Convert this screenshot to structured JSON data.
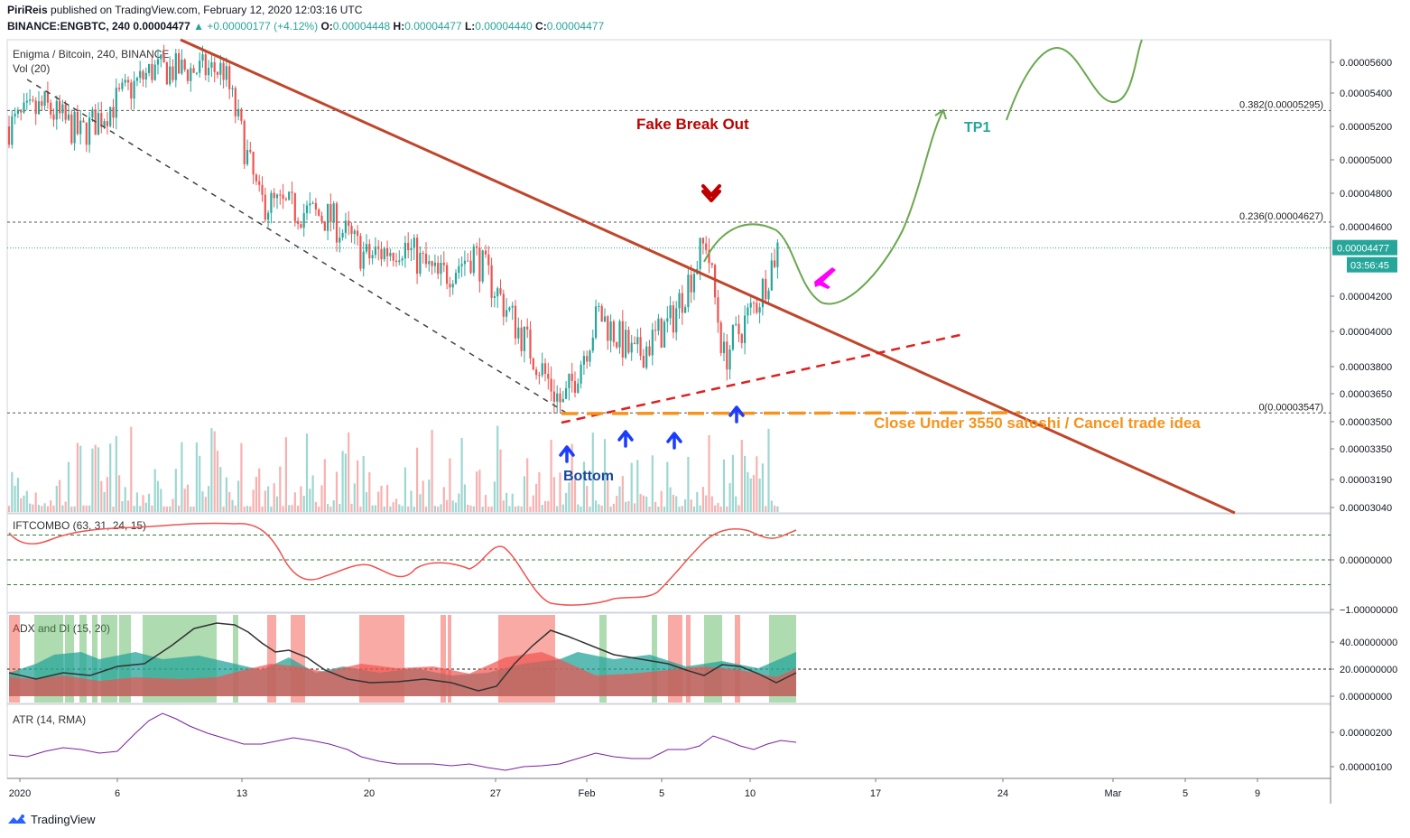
{
  "header": {
    "author": "PiriReis",
    "published_text": "published on TradingView.com, February 12, 2020 12:03:16 UTC",
    "symbol": "BINANCE:ENGBTC, 240",
    "last": "0.00004477",
    "change": "▲ +0.00000177 (+4.12%)",
    "o_label": "O:",
    "o": "0.00004448",
    "h_label": "H:",
    "h": "0.00004477",
    "l_label": "L:",
    "l": "0.00004440",
    "c_label": "C:",
    "c": "0.00004477"
  },
  "footer": {
    "brand": "TradingView"
  },
  "colors": {
    "up": "#26a69a",
    "down": "#ef5350",
    "trendline": "#c0452b",
    "annot_red": "#c00000",
    "annot_green": "#26a69a",
    "orange": "#f7931a",
    "arrow_blue": "#1a3cff",
    "projection": "#6aa84f",
    "plane": "#ff00ff"
  },
  "annotations": {
    "fake_break_out": "Fake Break Out",
    "tp1": "TP1",
    "bottom": "Bottom",
    "cancel": "Close Under 3550 satoshi / Cancel trade idea"
  },
  "chart_data": [
    {
      "type": "candlestick",
      "title": "Enigma / Bitcoin, 240, BINANCE",
      "volume_title": "Vol (20)",
      "x_tick_labels": [
        "2020",
        "6",
        "13",
        "20",
        "27",
        "Feb",
        "5",
        "10",
        "17",
        "24",
        "Mar",
        "5",
        "9"
      ],
      "y_tick_labels": [
        "0.00005600",
        "0.00005400",
        "0.00005200",
        "0.00005000",
        "0.00004800",
        "0.00004600",
        "0.00004200",
        "0.00004000",
        "0.00003800",
        "0.00003650",
        "0.00003500",
        "0.00003350",
        "0.00003190",
        "0.00003040"
      ],
      "last_price_label": "0.00004477",
      "countdown_label": "03:56:45",
      "fib_levels": [
        {
          "label": "0.382(0.00005295)",
          "value": 5.295e-05
        },
        {
          "label": "0.236(0.00004627)",
          "value": 4.627e-05
        },
        {
          "label": "0(0.00003547)",
          "value": 3.547e-05
        }
      ],
      "close_path": [
        {
          "date": "2019-12-31",
          "close": 5.2e-05
        },
        {
          "date": "2020-01-02",
          "close": 5.32e-05
        },
        {
          "date": "2020-01-04",
          "close": 5.15e-05
        },
        {
          "date": "2020-01-06",
          "close": 5.35e-05
        },
        {
          "date": "2020-01-08",
          "close": 5.55e-05
        },
        {
          "date": "2020-01-10",
          "close": 5.55e-05
        },
        {
          "date": "2020-01-12",
          "close": 5.55e-05
        },
        {
          "date": "2020-01-14",
          "close": 4.75e-05
        },
        {
          "date": "2020-01-16",
          "close": 4.7e-05
        },
        {
          "date": "2020-01-18",
          "close": 4.65e-05
        },
        {
          "date": "2020-01-20",
          "close": 4.42e-05
        },
        {
          "date": "2020-01-22",
          "close": 4.5e-05
        },
        {
          "date": "2020-01-24",
          "close": 4.3e-05
        },
        {
          "date": "2020-01-26",
          "close": 4.45e-05
        },
        {
          "date": "2020-01-28",
          "close": 4.1e-05
        },
        {
          "date": "2020-01-30",
          "close": 3.75e-05
        },
        {
          "date": "2020-01-31",
          "close": 3.58e-05
        },
        {
          "date": "2020-02-02",
          "close": 4.1e-05
        },
        {
          "date": "2020-02-04",
          "close": 3.85e-05
        },
        {
          "date": "2020-02-06",
          "close": 4.05e-05
        },
        {
          "date": "2020-02-08",
          "close": 4.52e-05
        },
        {
          "date": "2020-02-09",
          "close": 3.85e-05
        },
        {
          "date": "2020-02-11",
          "close": 4.2e-05
        },
        {
          "date": "2020-02-12",
          "close": 4.477e-05
        }
      ],
      "projection_label": "TP1"
    },
    {
      "type": "line",
      "title": "IFTCOMBO (63, 31, 24, 15)",
      "y_tick_labels": [
        "0.00000000",
        "−1.00000000"
      ],
      "levels": [
        0.5,
        0,
        -0.5
      ]
    },
    {
      "type": "area",
      "title": "ADX and DI (15, 20)",
      "y_tick_labels": [
        "40.00000000",
        "20.00000000",
        "0.00000000"
      ],
      "threshold": 20
    },
    {
      "type": "line",
      "title": "ATR (14, RMA)",
      "y_tick_labels": [
        "0.00000200",
        "0.00000100"
      ]
    }
  ]
}
